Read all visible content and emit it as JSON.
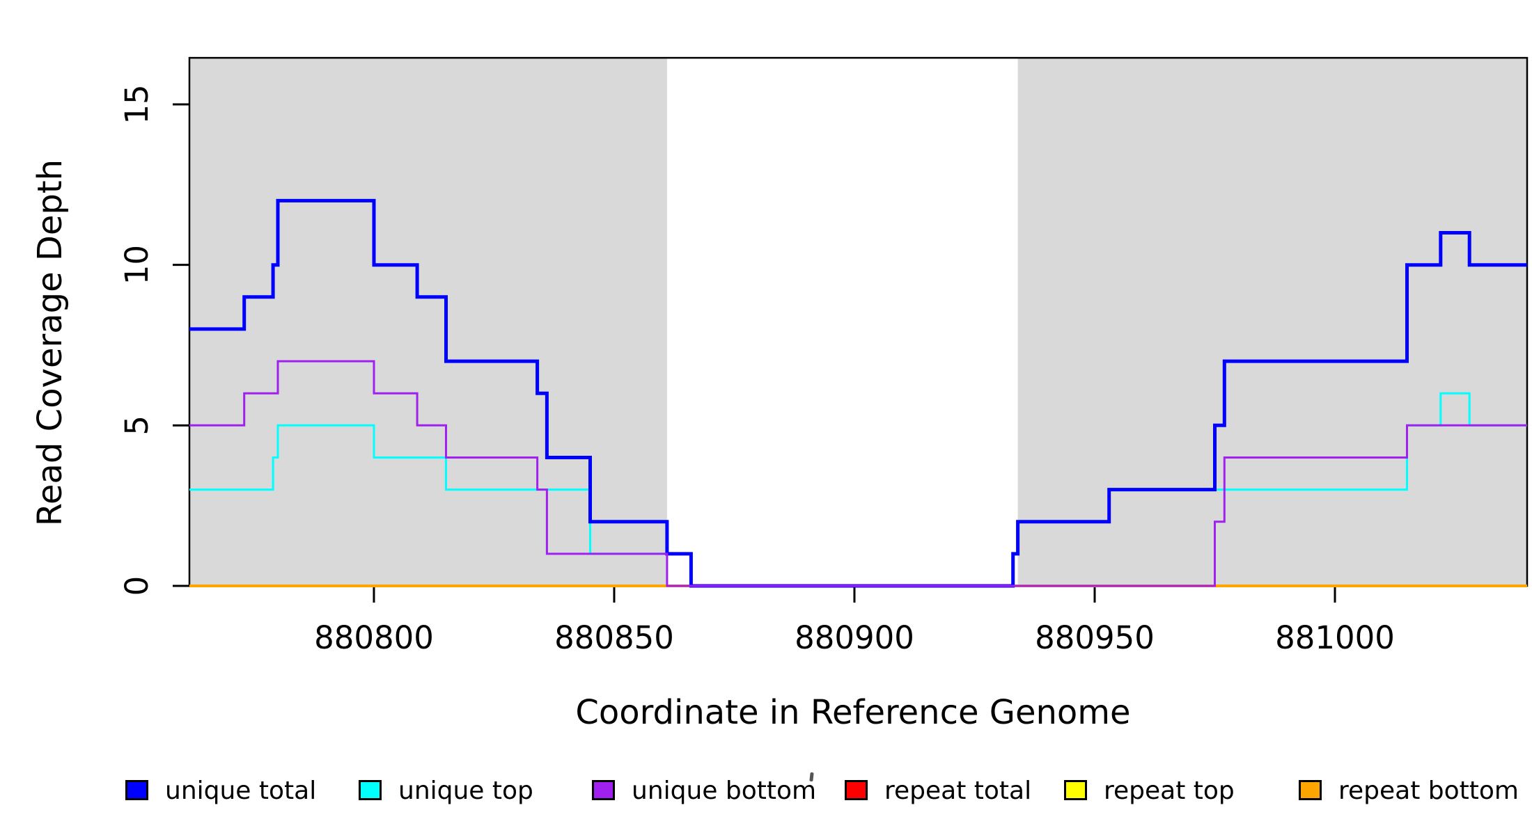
{
  "figure": {
    "xlabel": "Coordinate in Reference Genome",
    "ylabel": "Read Coverage Depth"
  },
  "chart_data": {
    "type": "line",
    "subtype": "step",
    "title": "",
    "xlabel": "Coordinate in Reference Genome",
    "ylabel": "Read Coverage Depth",
    "x_range": [
      880761.6,
      881040
    ],
    "y_range": [
      0,
      16.45
    ],
    "x_ticks": [
      880800,
      880850,
      880900,
      880950,
      881000
    ],
    "y_ticks": [
      0,
      5,
      10,
      15
    ],
    "grid": false,
    "legend_position": "bottom",
    "plot_background": "#ffffff",
    "shaded_regions": [
      {
        "x0": 880761.6,
        "x1": 880861,
        "color": "#d9d9d9"
      },
      {
        "x0": 880934,
        "x1": 881040,
        "color": "#d9d9d9"
      }
    ],
    "series": [
      {
        "name": "repeat total",
        "color": "#ff0000",
        "line_width": 3,
        "steps": [
          [
            880761.6,
            0
          ]
        ]
      },
      {
        "name": "repeat top",
        "color": "#ffff00",
        "line_width": 3,
        "steps": [
          [
            880761.6,
            0
          ]
        ]
      },
      {
        "name": "repeat bottom",
        "color": "#ffa500",
        "line_width": 4,
        "steps": [
          [
            880761.6,
            0
          ]
        ]
      },
      {
        "name": "unique top",
        "color": "#00ffff",
        "line_width": 3,
        "steps": [
          [
            880761.6,
            3
          ],
          [
            880779,
            4
          ],
          [
            880780,
            5
          ],
          [
            880800,
            4
          ],
          [
            880815,
            3
          ],
          [
            880845,
            1
          ],
          [
            880866,
            0
          ],
          [
            880933,
            1
          ],
          [
            880934,
            2
          ],
          [
            880953,
            3
          ],
          [
            881015,
            5
          ],
          [
            881022,
            6
          ],
          [
            881028,
            5
          ]
        ]
      },
      {
        "name": "unique total",
        "color": "#0000ff",
        "line_width": 5,
        "steps": [
          [
            880761.6,
            8
          ],
          [
            880773,
            9
          ],
          [
            880779,
            10
          ],
          [
            880780,
            12
          ],
          [
            880800,
            10
          ],
          [
            880809,
            9
          ],
          [
            880815,
            7
          ],
          [
            880834,
            6
          ],
          [
            880836,
            4
          ],
          [
            880845,
            2
          ],
          [
            880861,
            1
          ],
          [
            880866,
            0
          ],
          [
            880933,
            1
          ],
          [
            880934,
            2
          ],
          [
            880953,
            3
          ],
          [
            880975,
            5
          ],
          [
            880977,
            7
          ],
          [
            881015,
            10
          ],
          [
            881022,
            11
          ],
          [
            881028,
            10
          ]
        ]
      },
      {
        "name": "unique bottom",
        "color": "#a020f0",
        "line_width": 3,
        "steps": [
          [
            880761.6,
            5
          ],
          [
            880773,
            6
          ],
          [
            880780,
            7
          ],
          [
            880800,
            6
          ],
          [
            880809,
            5
          ],
          [
            880815,
            4
          ],
          [
            880834,
            3
          ],
          [
            880836,
            1
          ],
          [
            880861,
            0
          ],
          [
            880975,
            2
          ],
          [
            880977,
            4
          ],
          [
            881015,
            5
          ]
        ]
      }
    ],
    "legend": [
      {
        "label": "unique total",
        "color": "#0000ff"
      },
      {
        "label": "unique top",
        "color": "#00ffff"
      },
      {
        "label": "unique bottom",
        "color": "#a020f0"
      },
      {
        "label": "repeat total",
        "color": "#ff0000"
      },
      {
        "label": "repeat top",
        "color": "#ffff00"
      },
      {
        "label": "repeat bottom",
        "color": "#ffa500"
      }
    ]
  },
  "colors": {
    "shade": "#d9d9d9",
    "axis": "#000000",
    "text": "#000000"
  }
}
